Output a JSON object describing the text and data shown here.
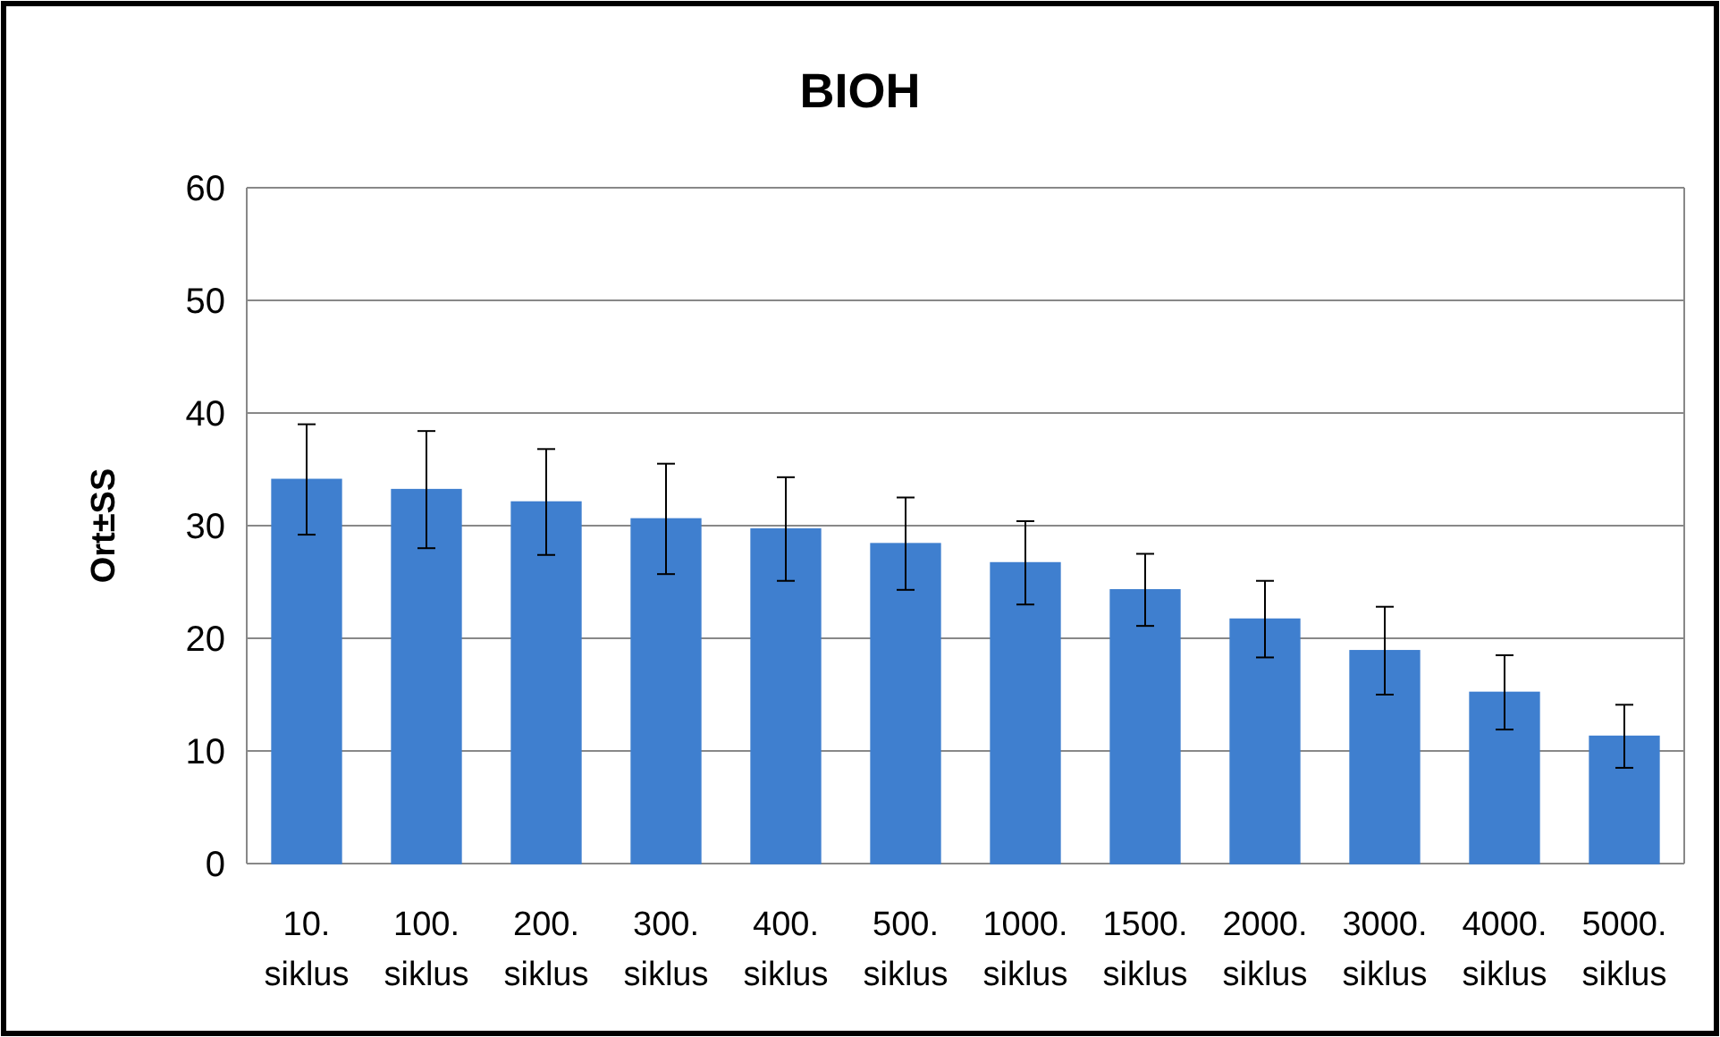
{
  "chart_data": {
    "type": "bar",
    "title": "BIOH",
    "ylabel": "Ort±SS",
    "categories": [
      "10. siklus",
      "100. siklus",
      "200. siklus",
      "300. siklus",
      "400. siklus",
      "500. siklus",
      "1000. siklus",
      "1500. siklus",
      "2000. siklus",
      "3000. siklus",
      "4000. siklus",
      "5000. siklus"
    ],
    "values": [
      34.1,
      33.2,
      32.1,
      30.6,
      29.7,
      28.4,
      26.7,
      24.3,
      21.7,
      18.9,
      15.2,
      11.3
    ],
    "errors": [
      4.9,
      5.2,
      4.7,
      4.9,
      4.6,
      4.1,
      3.7,
      3.2,
      3.4,
      3.9,
      3.3,
      2.8
    ],
    "color": "#3f7fcf",
    "ylim": [
      0,
      60
    ],
    "yticks": [
      0,
      10,
      20,
      30,
      40,
      50,
      60
    ],
    "grid": "y"
  }
}
